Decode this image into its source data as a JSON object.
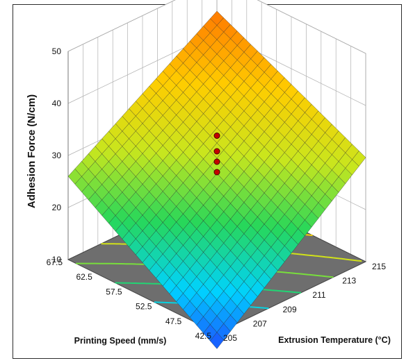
{
  "chart_data": {
    "type": "surface",
    "title": "",
    "xlabel": "Extrusion Temperature (°C)",
    "ylabel": "Printing Speed (mm/s)",
    "zlabel": "Adhesion Force (N/cm)",
    "x_ticks": [
      "205",
      "207",
      "209",
      "211",
      "213",
      "215"
    ],
    "y_ticks": [
      "42.5",
      "47.5",
      "52.5",
      "57.5",
      "62.5",
      "67.5"
    ],
    "z_ticks": [
      "10",
      "20",
      "30",
      "40",
      "50"
    ],
    "xlim": [
      205,
      215
    ],
    "ylim": [
      42.5,
      67.5
    ],
    "zlim": [
      10,
      50
    ],
    "surface_corners": [
      {
        "temperature": 205,
        "speed": 42.5,
        "adhesion": 7
      },
      {
        "temperature": 215,
        "speed": 42.5,
        "adhesion": 30
      },
      {
        "temperature": 205,
        "speed": 67.5,
        "adhesion": 26
      },
      {
        "temperature": 215,
        "speed": 67.5,
        "adhesion": 41
      }
    ],
    "design_points": [
      {
        "temperature": 210,
        "speed": 55,
        "adhesion": 34
      },
      {
        "temperature": 210,
        "speed": 55,
        "adhesion": 31
      },
      {
        "temperature": 210,
        "speed": 55,
        "adhesion": 29
      },
      {
        "temperature": 210,
        "speed": 55,
        "adhesion": 27
      }
    ],
    "contour_levels": [
      10,
      15,
      20,
      25,
      30,
      35
    ],
    "colormap": [
      "#1f3cff",
      "#00d2ff",
      "#27d75a",
      "#c8e61e",
      "#ffcc00",
      "#ff7800"
    ],
    "floor_color": "#6e6e6e",
    "grid": true
  }
}
